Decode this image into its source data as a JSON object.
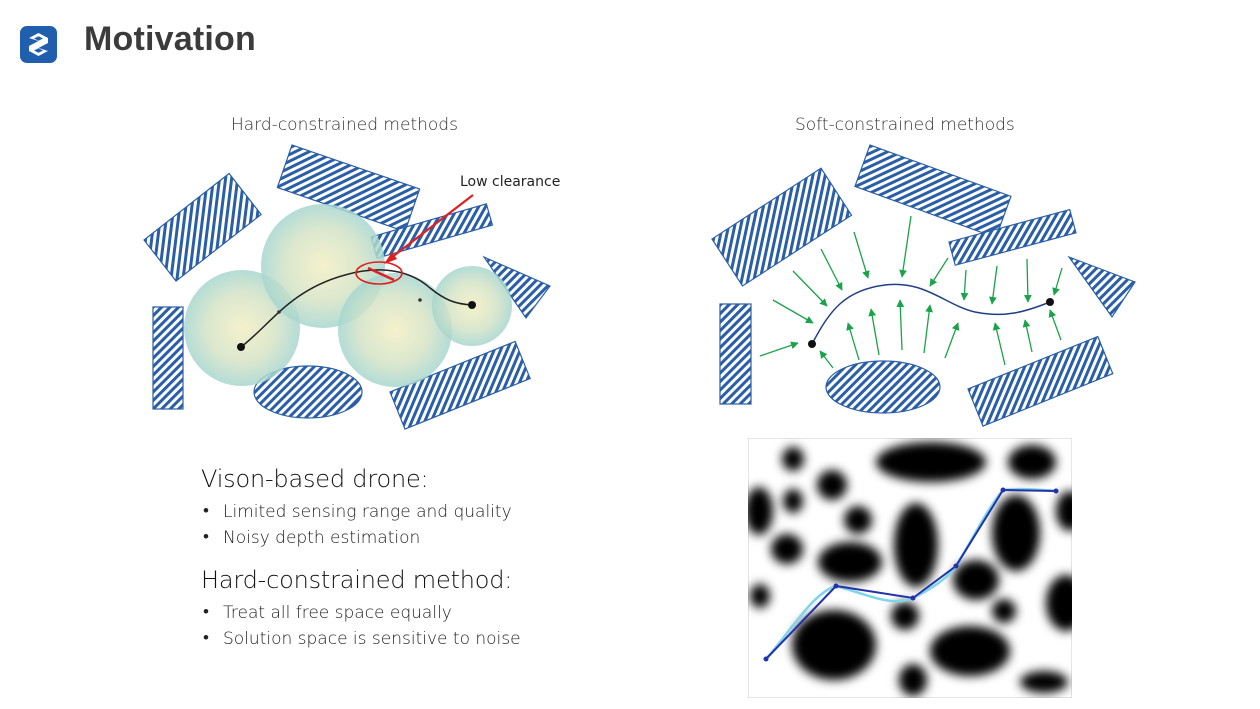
{
  "header": {
    "title": "Motivation",
    "logo_icon": "slide-logo-icon"
  },
  "left_panel": {
    "title": "Hard-constrained methods",
    "annotation": "Low clearance"
  },
  "right_panel": {
    "title": "Soft-constrained methods"
  },
  "text_blocks": [
    {
      "heading": "Vison-based drone:",
      "bullets": [
        "Limited sensing range and quality",
        "Noisy depth estimation"
      ]
    },
    {
      "heading": "Hard-constrained method:",
      "bullets": [
        "Treat all free space equally",
        "Solution space is sensitive to noise"
      ]
    }
  ],
  "colors": {
    "logo": "#1f5fae",
    "obstacle": "#2a5fa8",
    "arrow": "#1aa34a",
    "highlight": "#e02020",
    "corridor": "#8fd0c8"
  }
}
